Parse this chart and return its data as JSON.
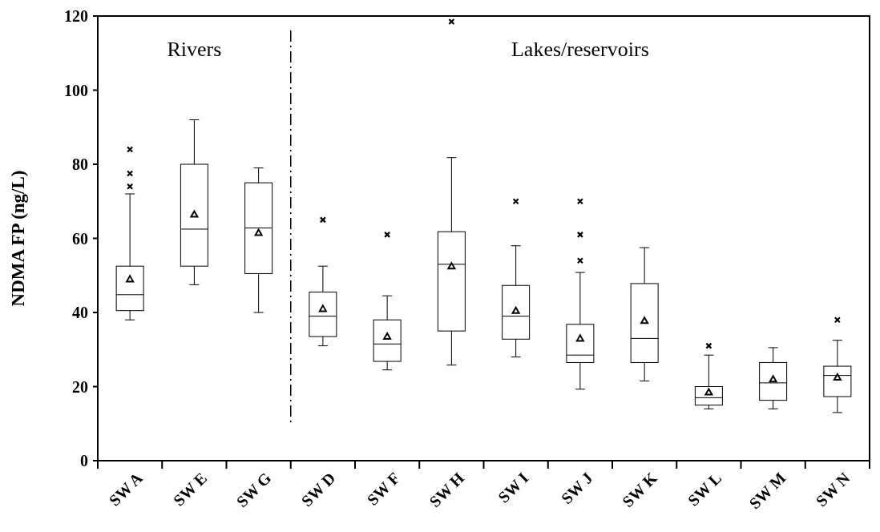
{
  "chart_data": {
    "type": "box",
    "ylabel": "NDMA FP (ng/L)",
    "categories": [
      "SW A",
      "SW E",
      "SW G",
      "SW D",
      "SW F",
      "SW H",
      "SW I",
      "SW J",
      "SW K",
      "SW L",
      "SW M",
      "SW N"
    ],
    "boxes": [
      {
        "low": 38,
        "q1": 40.5,
        "median": 44.8,
        "q3": 52.5,
        "high": 72,
        "mean": 49,
        "outliers": [
          74,
          77.5,
          84
        ]
      },
      {
        "low": 47.5,
        "q1": 52.5,
        "median": 62.5,
        "q3": 80,
        "high": 92,
        "mean": 66.5
      },
      {
        "low": 40,
        "q1": 50.5,
        "median": 62.8,
        "q3": 75,
        "high": 79,
        "mean": 61.5
      },
      {
        "low": 31,
        "q1": 33.5,
        "median": 39,
        "q3": 45.5,
        "high": 52.5,
        "mean": 41,
        "outliers": [
          65
        ]
      },
      {
        "low": 24.5,
        "q1": 26.8,
        "median": 31.5,
        "q3": 38,
        "high": 44.5,
        "mean": 33.5,
        "outliers": [
          61
        ]
      },
      {
        "low": 25.8,
        "q1": 35,
        "median": 53,
        "q3": 61.8,
        "high": 81.8,
        "mean": 52.5,
        "outliers": [
          118.5
        ]
      },
      {
        "low": 28,
        "q1": 32.8,
        "median": 39,
        "q3": 47.3,
        "high": 58,
        "mean": 40.5,
        "outliers": [
          70
        ]
      },
      {
        "low": 19.3,
        "q1": 26.5,
        "median": 28.5,
        "q3": 36.8,
        "high": 50.8,
        "mean": 33,
        "outliers": [
          54,
          61,
          70
        ]
      },
      {
        "low": 21.5,
        "q1": 26.5,
        "median": 33,
        "q3": 47.8,
        "high": 57.5,
        "mean": 37.8
      },
      {
        "low": 14,
        "q1": 15,
        "median": 17,
        "q3": 20,
        "high": 28.5,
        "mean": 18.5,
        "outliers": [
          31
        ]
      },
      {
        "low": 14,
        "q1": 16.3,
        "median": 21,
        "q3": 26.5,
        "high": 30.5,
        "mean": 22
      },
      {
        "low": 13,
        "q1": 17.3,
        "median": 23,
        "q3": 25.5,
        "high": 32.5,
        "mean": 22.5,
        "outliers": [
          38
        ]
      }
    ],
    "color": "#000000",
    "ylim": [
      0,
      120
    ],
    "yticks": [
      0,
      20,
      40,
      60,
      80,
      100,
      120
    ],
    "annotations": [
      "Rivers",
      "Lakes/reservoirs"
    ]
  }
}
